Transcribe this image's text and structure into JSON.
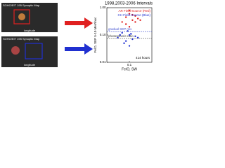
{
  "panels": [
    {
      "label": "SOHO/EIT 195 Synoptic Map",
      "axis_label": "longitude"
    },
    {
      "label": "SOHO/EIT 195 Synoptic Map",
      "axis_label": "longitude"
    }
  ],
  "chart_data": {
    "type": "scatter",
    "title": "1998,2003-2006 Intervals",
    "x_label": "Fe/O, SW",
    "y_label": "Fe/O, SEP 5-10 MeV/nuc",
    "log_x": true,
    "log_y": true,
    "xlim": [
      0.05,
      0.2
    ],
    "xticks": [
      0.1
    ],
    "ylim": [
      0.01,
      1
    ],
    "yticks": [
      {
        "value": 1,
        "label": "1.00"
      },
      {
        "value": 0.1,
        "label": "0.10"
      },
      {
        "value": 0.01,
        "label": "0.01"
      }
    ],
    "series": [
      {
        "name": "AR Field-Source (Red)",
        "color": "#e02020",
        "x": [
          0.08,
          0.09,
          0.1,
          0.11,
          0.12,
          0.13,
          0.09,
          0.1,
          0.11,
          0.12,
          0.14,
          0.1
        ],
        "values": [
          0.3,
          0.45,
          0.6,
          0.35,
          0.5,
          0.4,
          0.25,
          0.8,
          0.55,
          0.3,
          0.35,
          0.2
        ]
      },
      {
        "name": "CH Field-Source (Blue)",
        "color": "#2030d0",
        "x": [
          0.07,
          0.08,
          0.09,
          0.1,
          0.11,
          0.12,
          0.085,
          0.095,
          0.105,
          0.13,
          0.075,
          0.1
        ],
        "values": [
          0.08,
          0.12,
          0.06,
          0.1,
          0.07,
          0.09,
          0.05,
          0.14,
          0.11,
          0.08,
          0.1,
          0.04
        ]
      }
    ],
    "reference_lines": [
      {
        "label": "gradual SEP mix",
        "value": 0.134,
        "color": "#4050d0"
      },
      {
        "label": "photospheric ratio",
        "value": 0.075,
        "color": "#333333"
      }
    ],
    "annotation": "414 hours"
  }
}
